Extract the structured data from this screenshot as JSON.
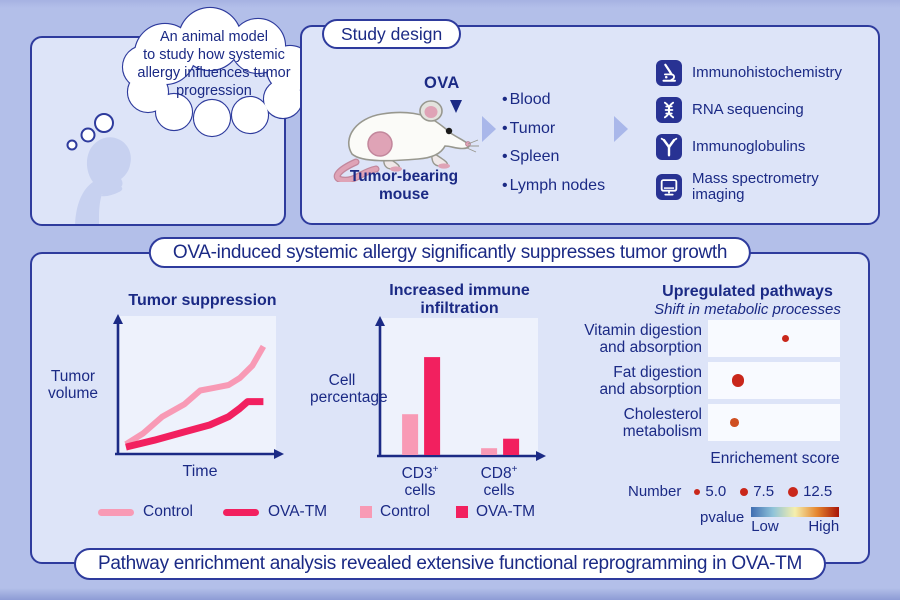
{
  "colors": {
    "background": "#b3bfe9",
    "panel_bg": "#dde4f8",
    "panel_border": "#2e3b9d",
    "text_navy": "#1b2a85",
    "pill_bg": "#ffffff",
    "plot_bg": "#eef2fc",
    "control_pink": "#f89ab5",
    "ova_tm_pink": "#f2205f",
    "dot_red": "#c9271b",
    "icon_bg": "#283293",
    "flow_arrow_blue": "#a9b7ea"
  },
  "thinker": {
    "bubble_lines": [
      "An animal model",
      "to study how systemic",
      "allergy influences tumor",
      "progression"
    ]
  },
  "study_design": {
    "title": "Study design",
    "ova_label": "OVA",
    "mouse_caption_lines": [
      "Tumor-bearing",
      "mouse"
    ],
    "samples": [
      "Blood",
      "Tumor",
      "Spleen",
      "Lymph nodes"
    ],
    "methods": [
      {
        "icon": "microscope-icon",
        "label": "Immunohistochemistry"
      },
      {
        "icon": "dna-icon",
        "label": "RNA sequencing"
      },
      {
        "icon": "antibody-icon",
        "label": "Immunoglobulins"
      },
      {
        "icon": "monitor-icon",
        "label": "Mass spectrometry imaging"
      }
    ]
  },
  "results": {
    "header": "OVA-induced systemic allergy significantly suppresses tumor growth",
    "footer": "Pathway enrichment analysis revealed extensive functional reprogramming in OVA-TM"
  },
  "chart_data": [
    {
      "type": "line",
      "title": "Tumor suppression",
      "xlabel": "Time",
      "ylabel_lines": [
        "Tumor",
        "volume"
      ],
      "axes": "qualitative, arrow axes, no ticks",
      "series": [
        {
          "name": "Control",
          "color": "#f89ab5",
          "x": [
            5,
            16,
            28,
            42,
            52,
            61,
            70,
            77,
            85,
            92
          ],
          "y": [
            7,
            15,
            27,
            36,
            46,
            48,
            50,
            55,
            64,
            78
          ]
        },
        {
          "name": "OVA-TM",
          "color": "#f2205f",
          "x": [
            5,
            23,
            42,
            58,
            70,
            77,
            82,
            92
          ],
          "y": [
            5,
            10,
            16,
            21,
            27,
            33,
            38,
            38
          ]
        }
      ],
      "legend_position": "bottom"
    },
    {
      "type": "bar",
      "title_lines": [
        "Increased immune",
        "infiltration"
      ],
      "ylabel_lines": [
        "Cell",
        "percentage"
      ],
      "categories": [
        {
          "base": "CD3",
          "sup": "+",
          "line2": "cells"
        },
        {
          "base": "CD8",
          "sup": "+",
          "line2": "cells"
        }
      ],
      "series": [
        {
          "name": "Control",
          "color": "#f89ab5",
          "values": [
            30,
            5
          ]
        },
        {
          "name": "OVA-TM",
          "color": "#f2205f",
          "values": [
            72,
            12
          ]
        }
      ],
      "ylim": [
        0,
        100
      ],
      "legend_position": "bottom"
    },
    {
      "type": "dot",
      "title": "Upregulated pathways",
      "subtitle": "Shift in metabolic processes",
      "xlabel": "Enrichement score",
      "rows": [
        {
          "label_lines": [
            "Vitamin digestion",
            "and absorption"
          ],
          "x_pct": 59,
          "number": 5.0,
          "color": "#c9271b"
        },
        {
          "label_lines": [
            "Fat digestion",
            "and absorption"
          ],
          "x_pct": 23,
          "number": 12.5,
          "color": "#c9271b"
        },
        {
          "label_lines": [
            "Cholesterol",
            "metabolism"
          ],
          "x_pct": 20,
          "number": 7.5,
          "color": "#cf4f22"
        }
      ],
      "size_legend": {
        "label": "Number",
        "items": [
          {
            "value": "5.0",
            "r": 3
          },
          {
            "value": "7.5",
            "r": 4
          },
          {
            "value": "12.5",
            "r": 5
          }
        ]
      },
      "color_legend": {
        "label": "pvalue",
        "low": "Low",
        "high": "High",
        "gradient": [
          "#3f6db2",
          "#8fc3d9",
          "#f5efad",
          "#e5862f",
          "#a81408"
        ]
      }
    }
  ]
}
